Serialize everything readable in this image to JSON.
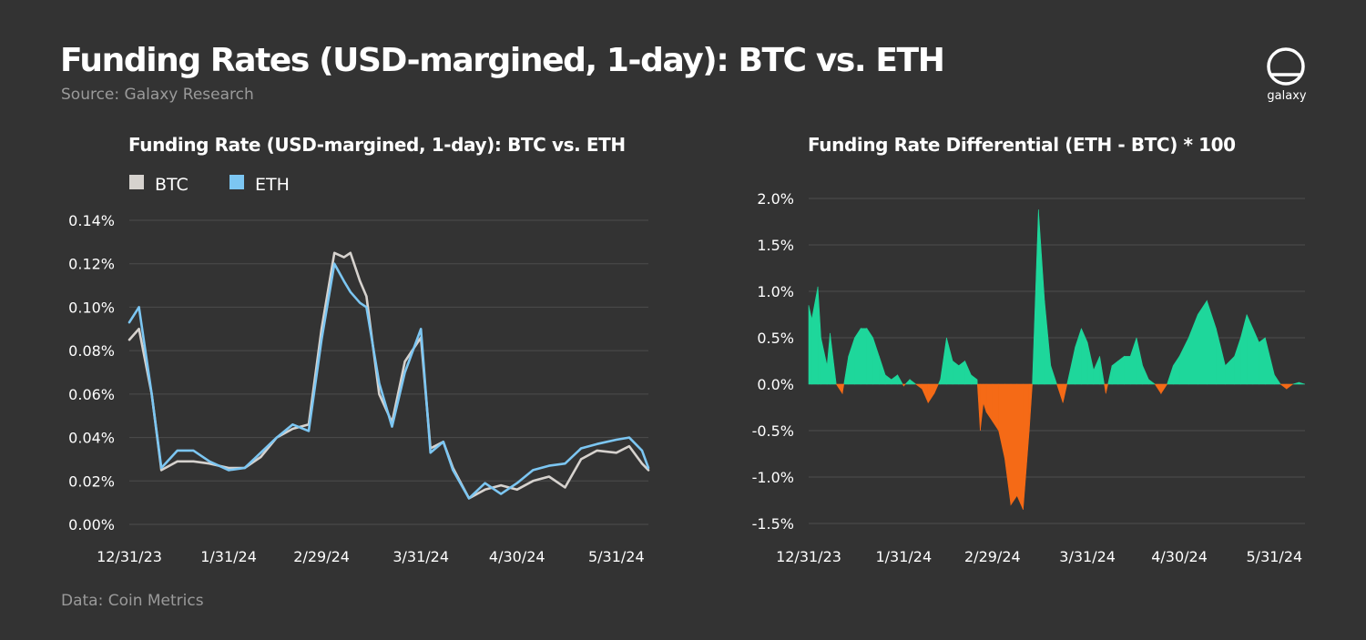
{
  "header": {
    "title": "Funding Rates (USD-margined, 1-day): BTC vs. ETH",
    "source": "Source: Galaxy Research",
    "footer": "Data: Coin Metrics",
    "logo_text": "galaxy"
  },
  "colors": {
    "background": "#333333",
    "btc": "#d6d2ce",
    "eth": "#7cc6f2",
    "positive": "#1ed79b",
    "negative": "#f56a16",
    "grid": "#4d4d4d"
  },
  "chart_data": [
    {
      "type": "line",
      "title": "Funding Rate (USD-margined, 1-day): BTC vs. ETH",
      "x_ticks": [
        "12/31/23",
        "1/31/24",
        "2/29/24",
        "3/31/24",
        "4/30/24",
        "5/31/24"
      ],
      "y_ticks": [
        "0.00%",
        "0.02%",
        "0.04%",
        "0.06%",
        "0.08%",
        "0.10%",
        "0.12%",
        "0.14%"
      ],
      "ylim": [
        0,
        0.14
      ],
      "legend_position": "top-left",
      "grid": true,
      "series": [
        {
          "name": "BTC",
          "x": [
            "2023-12-31",
            "2024-01-03",
            "2024-01-07",
            "2024-01-10",
            "2024-01-15",
            "2024-01-20",
            "2024-01-25",
            "2024-01-31",
            "2024-02-05",
            "2024-02-10",
            "2024-02-15",
            "2024-02-20",
            "2024-02-25",
            "2024-02-29",
            "2024-03-04",
            "2024-03-07",
            "2024-03-09",
            "2024-03-12",
            "2024-03-14",
            "2024-03-18",
            "2024-03-22",
            "2024-03-26",
            "2024-03-31",
            "2024-04-03",
            "2024-04-07",
            "2024-04-10",
            "2024-04-15",
            "2024-04-20",
            "2024-04-25",
            "2024-04-30",
            "2024-05-05",
            "2024-05-10",
            "2024-05-15",
            "2024-05-20",
            "2024-05-25",
            "2024-05-31",
            "2024-06-04",
            "2024-06-08",
            "2024-06-10"
          ],
          "values": [
            0.085,
            0.09,
            0.06,
            0.025,
            0.029,
            0.029,
            0.028,
            0.026,
            0.026,
            0.031,
            0.04,
            0.044,
            0.046,
            0.09,
            0.125,
            0.123,
            0.125,
            0.112,
            0.105,
            0.06,
            0.047,
            0.075,
            0.086,
            0.035,
            0.038,
            0.026,
            0.012,
            0.016,
            0.018,
            0.016,
            0.02,
            0.022,
            0.017,
            0.03,
            0.034,
            0.033,
            0.036,
            0.028,
            0.025
          ]
        },
        {
          "name": "ETH",
          "x": [
            "2023-12-31",
            "2024-01-03",
            "2024-01-07",
            "2024-01-10",
            "2024-01-15",
            "2024-01-20",
            "2024-01-25",
            "2024-01-31",
            "2024-02-05",
            "2024-02-10",
            "2024-02-15",
            "2024-02-20",
            "2024-02-25",
            "2024-02-29",
            "2024-03-04",
            "2024-03-07",
            "2024-03-09",
            "2024-03-12",
            "2024-03-14",
            "2024-03-18",
            "2024-03-22",
            "2024-03-26",
            "2024-03-31",
            "2024-04-03",
            "2024-04-07",
            "2024-04-10",
            "2024-04-15",
            "2024-04-20",
            "2024-04-25",
            "2024-04-30",
            "2024-05-05",
            "2024-05-10",
            "2024-05-15",
            "2024-05-20",
            "2024-05-25",
            "2024-05-31",
            "2024-06-04",
            "2024-06-08",
            "2024-06-10"
          ],
          "values": [
            0.093,
            0.1,
            0.06,
            0.026,
            0.034,
            0.034,
            0.029,
            0.025,
            0.026,
            0.033,
            0.04,
            0.046,
            0.043,
            0.085,
            0.12,
            0.112,
            0.107,
            0.102,
            0.1,
            0.065,
            0.045,
            0.07,
            0.09,
            0.033,
            0.038,
            0.025,
            0.012,
            0.019,
            0.014,
            0.019,
            0.025,
            0.027,
            0.028,
            0.035,
            0.037,
            0.039,
            0.04,
            0.034,
            0.026
          ]
        }
      ]
    },
    {
      "type": "area",
      "title": "Funding Rate Differential (ETH - BTC) * 100",
      "x_ticks": [
        "12/31/23",
        "1/31/24",
        "2/29/24",
        "3/31/24",
        "4/30/24",
        "5/31/24"
      ],
      "y_ticks": [
        "-1.5%",
        "-1.0%",
        "-0.5%",
        "0.0%",
        "0.5%",
        "1.0%",
        "1.5%",
        "2.0%"
      ],
      "ylim": [
        -1.5,
        2.0
      ],
      "grid": true,
      "x": [
        "2023-12-31",
        "2024-01-01",
        "2024-01-03",
        "2024-01-04",
        "2024-01-06",
        "2024-01-07",
        "2024-01-09",
        "2024-01-11",
        "2024-01-13",
        "2024-01-15",
        "2024-01-17",
        "2024-01-19",
        "2024-01-21",
        "2024-01-23",
        "2024-01-25",
        "2024-01-27",
        "2024-01-29",
        "2024-01-31",
        "2024-02-02",
        "2024-02-04",
        "2024-02-06",
        "2024-02-08",
        "2024-02-10",
        "2024-02-12",
        "2024-02-14",
        "2024-02-16",
        "2024-02-18",
        "2024-02-20",
        "2024-02-22",
        "2024-02-24",
        "2024-02-25",
        "2024-02-26",
        "2024-02-27",
        "2024-02-29",
        "2024-03-02",
        "2024-03-04",
        "2024-03-06",
        "2024-03-08",
        "2024-03-10",
        "2024-03-12",
        "2024-03-13",
        "2024-03-15",
        "2024-03-17",
        "2024-03-19",
        "2024-03-21",
        "2024-03-23",
        "2024-03-25",
        "2024-03-27",
        "2024-03-29",
        "2024-03-31",
        "2024-04-02",
        "2024-04-04",
        "2024-04-06",
        "2024-04-08",
        "2024-04-10",
        "2024-04-12",
        "2024-04-14",
        "2024-04-16",
        "2024-04-18",
        "2024-04-20",
        "2024-04-22",
        "2024-04-24",
        "2024-04-26",
        "2024-04-28",
        "2024-04-30",
        "2024-05-03",
        "2024-05-06",
        "2024-05-09",
        "2024-05-12",
        "2024-05-15",
        "2024-05-18",
        "2024-05-20",
        "2024-05-22",
        "2024-05-24",
        "2024-05-26",
        "2024-05-28",
        "2024-05-31",
        "2024-06-02",
        "2024-06-04",
        "2024-06-06",
        "2024-06-08",
        "2024-06-10"
      ],
      "values": [
        0.85,
        0.7,
        1.05,
        0.5,
        0.2,
        0.55,
        0.0,
        -0.1,
        0.3,
        0.5,
        0.6,
        0.6,
        0.5,
        0.3,
        0.1,
        0.05,
        0.1,
        -0.02,
        0.05,
        0.0,
        -0.05,
        -0.2,
        -0.1,
        0.05,
        0.5,
        0.25,
        0.2,
        0.25,
        0.1,
        0.05,
        -0.5,
        -0.2,
        -0.3,
        -0.4,
        -0.5,
        -0.8,
        -1.3,
        -1.2,
        -1.35,
        -0.5,
        0.0,
        1.88,
        0.9,
        0.2,
        0.0,
        -0.2,
        0.1,
        0.4,
        0.6,
        0.45,
        0.15,
        0.3,
        -0.1,
        0.2,
        0.25,
        0.3,
        0.3,
        0.5,
        0.2,
        0.05,
        0.0,
        -0.1,
        0.0,
        0.2,
        0.3,
        0.5,
        0.75,
        0.9,
        0.6,
        0.2,
        0.3,
        0.5,
        0.75,
        0.6,
        0.45,
        0.5,
        0.1,
        0.0,
        -0.05,
        0.0,
        0.02,
        0.0
      ]
    }
  ]
}
